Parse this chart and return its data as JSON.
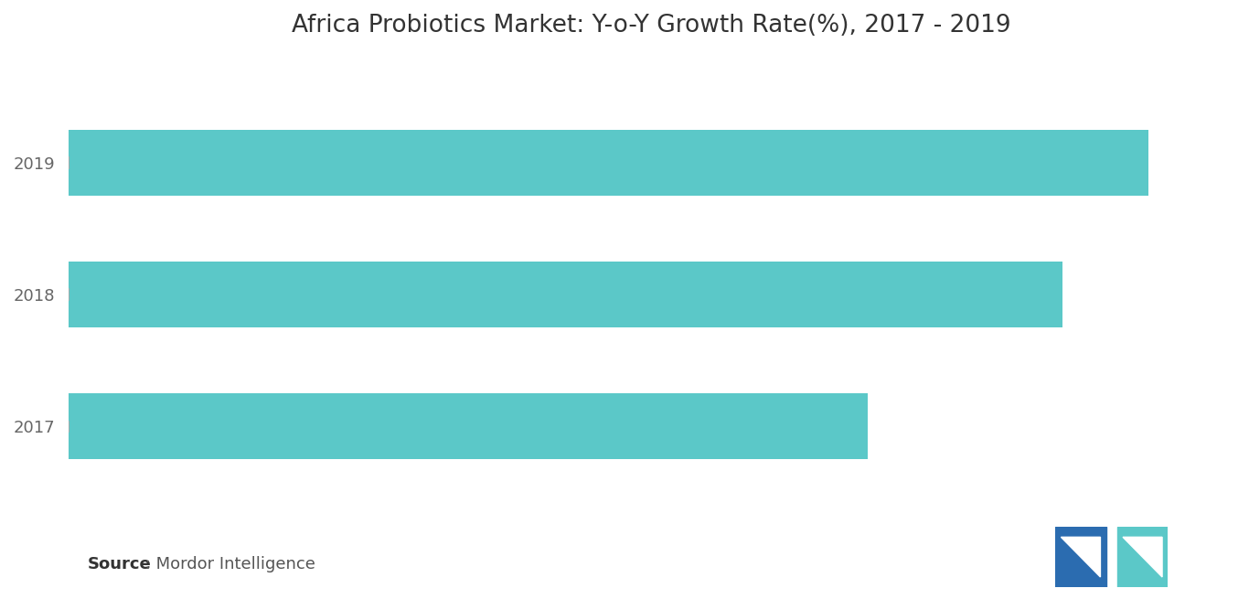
{
  "title": "Africa Probiotics Market: Y-o-Y Growth Rate(%), 2017 - 2019",
  "years": [
    "2017",
    "2018",
    "2019"
  ],
  "values": [
    7.4,
    9.2,
    10.0
  ],
  "bar_color": "#5BC8C8",
  "xlim": [
    0,
    10.8
  ],
  "background_color": "#ffffff",
  "title_fontsize": 19,
  "label_fontsize": 13,
  "source_bold": "Source",
  "source_text": " : Mordor Intelligence",
  "source_fontsize": 13,
  "logo_left_color": "#2B6CB0",
  "logo_right_color": "#5BC8C8",
  "logo_accent_color": "#7DD8D8"
}
